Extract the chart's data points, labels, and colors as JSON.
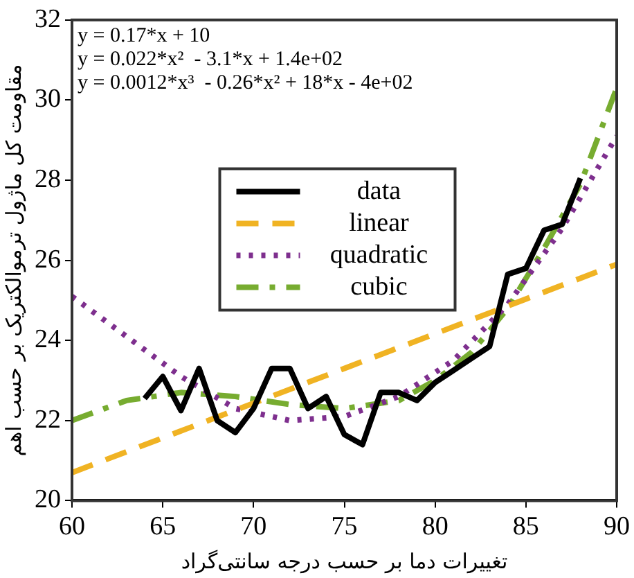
{
  "chart_data": {
    "type": "line",
    "xlabel": "تغییرات دما بر حسب درجه سانتی‌گراد",
    "ylabel": "مقاومت کل ماژول ترموالکتریک بر حسب اهم",
    "xlim": [
      60,
      90
    ],
    "xticks": [
      60,
      65,
      70,
      75,
      80,
      85,
      90
    ],
    "ylim": [
      20,
      32
    ],
    "yticks": [
      20,
      22,
      24,
      26,
      28,
      30,
      32
    ],
    "grid": false,
    "legend": "center",
    "marker": "none",
    "annotations": [
      "y = 0.17*x + 10",
      "y = 0.022*x²  - 3.1*x + 1.4e+02",
      "y = 0.0012*x³  - 0.26*x² + 18*x - 4e+02"
    ],
    "series": [
      {
        "name": "data",
        "color": "#000000",
        "line_style": "solid",
        "x": [
          64,
          65,
          66,
          67,
          68,
          69,
          70,
          71,
          72,
          73,
          74,
          75,
          76,
          77,
          78,
          79,
          80,
          81,
          82,
          83,
          84,
          85,
          86,
          87,
          88
        ],
        "values": [
          22.55,
          23.1,
          22.25,
          23.3,
          22.0,
          21.7,
          22.3,
          23.3,
          23.3,
          22.3,
          22.6,
          21.65,
          21.4,
          22.7,
          22.7,
          22.5,
          22.95,
          23.25,
          23.55,
          23.85,
          25.65,
          25.8,
          26.75,
          26.9,
          28.05
        ]
      },
      {
        "name": "linear",
        "color": "#f0b323",
        "line_style": "dashed",
        "x": [
          60,
          90
        ],
        "values": [
          20.7,
          25.9
        ]
      },
      {
        "name": "quadratic",
        "color": "#7e2f8e",
        "line_style": "dotted",
        "x": [
          60,
          63,
          66,
          69,
          72,
          75,
          78,
          81,
          84,
          87,
          90
        ],
        "values": [
          25.1,
          24.1,
          23.1,
          22.3,
          22.0,
          22.1,
          22.6,
          23.5,
          24.9,
          26.8,
          29.1
        ]
      },
      {
        "name": "cubic",
        "color": "#77ac30",
        "line_style": "dashdot",
        "x": [
          60,
          63,
          66,
          69,
          72,
          75,
          78,
          80,
          82,
          84,
          86,
          88,
          90
        ],
        "values": [
          22.0,
          22.5,
          22.7,
          22.6,
          22.4,
          22.3,
          22.5,
          23.0,
          23.7,
          24.8,
          26.3,
          27.9,
          30.3
        ]
      }
    ]
  }
}
